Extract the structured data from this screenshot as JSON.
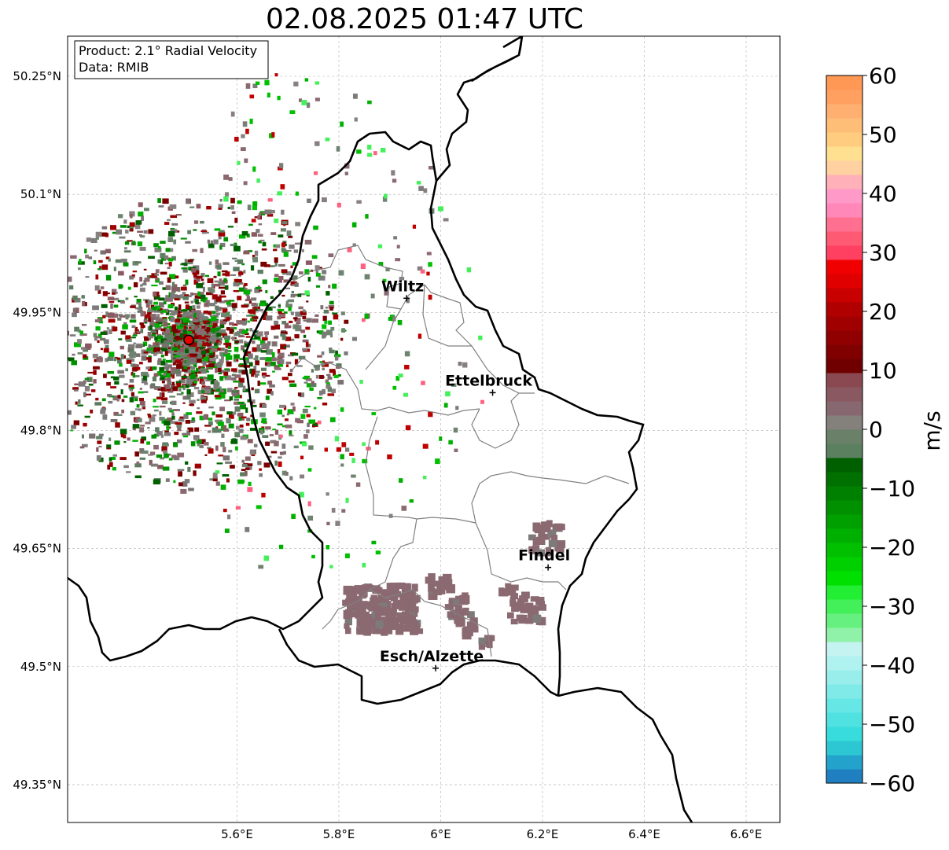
{
  "title": "02.08.2025 01:47 UTC",
  "info_box": {
    "product": "Product: 2.1° Radial Velocity",
    "data_source": "Data: RMIB"
  },
  "map": {
    "lon_range": [
      5.4,
      6.8
    ],
    "lat_range": [
      49.3,
      50.3
    ],
    "lon_ticks": [
      {
        "value": 5.6,
        "label": "5.6°E"
      },
      {
        "value": 5.8,
        "label": "5.8°E"
      },
      {
        "value": 6.0,
        "label": "6°E"
      },
      {
        "value": 6.2,
        "label": "6.2°E"
      },
      {
        "value": 6.4,
        "label": "6.4°E"
      },
      {
        "value": 6.6,
        "label": "6.6°E"
      }
    ],
    "lat_ticks": [
      {
        "value": 50.25,
        "label": "50.25°N"
      },
      {
        "value": 50.1,
        "label": "50.1°N"
      },
      {
        "value": 49.95,
        "label": "49.95°N"
      },
      {
        "value": 49.8,
        "label": "49.8°N"
      },
      {
        "value": 49.65,
        "label": "49.65°N"
      },
      {
        "value": 49.5,
        "label": "49.5°N"
      },
      {
        "value": 49.35,
        "label": "49.35°N"
      }
    ],
    "grid": true,
    "radar_site": {
      "lon": 5.505,
      "lat": 49.915
    },
    "cities": [
      {
        "name": "Wiltz",
        "lon": 5.933,
        "lat": 49.968
      },
      {
        "name": "Ettelbruck",
        "lon": 6.102,
        "lat": 49.848
      },
      {
        "name": "Findel",
        "lon": 6.211,
        "lat": 49.626
      },
      {
        "name": "Esch/Alzette",
        "lon": 5.99,
        "lat": 49.498
      }
    ]
  },
  "colorbar": {
    "label": "m/s",
    "min": -60,
    "max": 60,
    "ticks": [
      {
        "value": 60,
        "label": "60"
      },
      {
        "value": 50,
        "label": "50"
      },
      {
        "value": 40,
        "label": "40"
      },
      {
        "value": 30,
        "label": "30"
      },
      {
        "value": 20,
        "label": "20"
      },
      {
        "value": 10,
        "label": "10"
      },
      {
        "value": 0,
        "label": "0"
      },
      {
        "value": -10,
        "label": "−10"
      },
      {
        "value": -20,
        "label": "−20"
      },
      {
        "value": -30,
        "label": "−30"
      },
      {
        "value": -40,
        "label": "−40"
      },
      {
        "value": -50,
        "label": "−50"
      },
      {
        "value": -60,
        "label": "−60"
      }
    ],
    "colors": [
      "#1f7fc0",
      "#23a3cc",
      "#2cc7d2",
      "#38dcdc",
      "#4fe2e0",
      "#66e6e4",
      "#80eae8",
      "#99eeec",
      "#b0f2ef",
      "#c4f3f1",
      "#8ff2a8",
      "#66f07f",
      "#44f05a",
      "#22ee33",
      "#00e000",
      "#00d000",
      "#00c000",
      "#00b000",
      "#00a000",
      "#009000",
      "#008000",
      "#007000",
      "#006000",
      "#5a8060",
      "#6a8068",
      "#84807c",
      "#886870",
      "#8a5860",
      "#8a4850",
      "#700000",
      "#800000",
      "#900000",
      "#a00000",
      "#b00000",
      "#c80000",
      "#e00000",
      "#f00000",
      "#ff4060",
      "#ff5a74",
      "#ff7090",
      "#ff88b8",
      "#ff99c8",
      "#ffb0b8",
      "#ffd0a0",
      "#ffe090",
      "#ffcc80",
      "#ffbe78",
      "#ffb070",
      "#ffa060",
      "#ff9855"
    ]
  }
}
